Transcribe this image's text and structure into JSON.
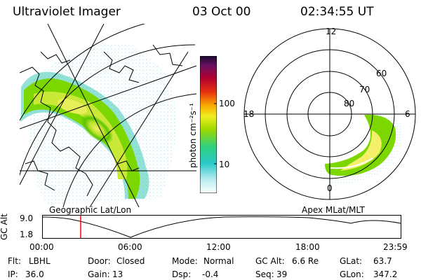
{
  "header": {
    "instrument": "Ultraviolet Imager",
    "date": "03 Oct 00",
    "time": "02:34:55 UT"
  },
  "colorbar": {
    "unit_label": "photon cm⁻²s⁻¹",
    "ticks": [
      "100",
      "10"
    ]
  },
  "polar_plot": {
    "mlt_labels": [
      "12",
      "18",
      "6",
      "0"
    ],
    "lat_labels": [
      "60",
      "70",
      "80"
    ]
  },
  "timeline": {
    "left_caption": "Geographic Lat/Lon",
    "right_caption": "Apex MLat/MLT",
    "y_axis_label": "GC Alt",
    "y_ticks": [
      "9.0",
      "1.8"
    ],
    "x_ticks": [
      "00:00",
      "06:00",
      "12:00",
      "18:00",
      "23:59"
    ],
    "marker_time": "02:34:55"
  },
  "info": {
    "row1": [
      {
        "label": "Flt:",
        "value": "LBHL"
      },
      {
        "label": "Door:",
        "value": "Closed"
      },
      {
        "label": "Mode:",
        "value": "Normal"
      },
      {
        "label": "GC Alt:",
        "value": "6.6 Re"
      },
      {
        "label": "GLat:",
        "value": "63.7"
      }
    ],
    "row2": [
      {
        "label": "IP:",
        "value": "36.0"
      },
      {
        "label": "Gain:",
        "value": "13"
      },
      {
        "label": "Dsp:",
        "value": "-0.4"
      },
      {
        "label": "Seq:",
        "value": "39"
      },
      {
        "label": "GLon:",
        "value": "347.2"
      }
    ]
  },
  "colors": {
    "marker": "#ff0000",
    "aurora_peak": "#f4f06a",
    "aurora_mid": "#7cd600",
    "aurora_low": "#22c2c2"
  }
}
